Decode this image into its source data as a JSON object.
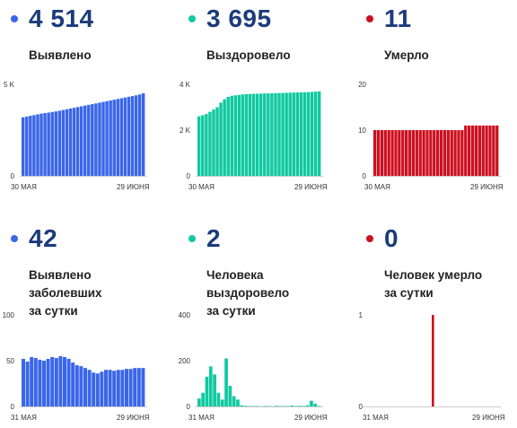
{
  "panels": [
    {
      "value": "4 514",
      "label_lines": [
        "Выявлено"
      ],
      "color": "#3a66e8",
      "dot_color": "#3a66e8"
    },
    {
      "value": "3 695",
      "label_lines": [
        "Выздоровело"
      ],
      "color": "#10c9a0",
      "dot_color": "#10c9a0"
    },
    {
      "value": "11",
      "label_lines": [
        "Умерло"
      ],
      "color": "#cc1020",
      "dot_color": "#cc1020"
    },
    {
      "value": "42",
      "label_lines": [
        "Выявлено заболевших",
        "за сутки"
      ],
      "color": "#3a66e8",
      "dot_color": "#3a66e8"
    },
    {
      "value": "2",
      "label_lines": [
        "Человека выздоровело",
        "за сутки"
      ],
      "color": "#10c9a0",
      "dot_color": "#10c9a0"
    },
    {
      "value": "0",
      "label_lines": [
        "Человек умерло",
        "за сутки"
      ],
      "color": "#cc1020",
      "dot_color": "#cc1020"
    }
  ],
  "chart_data": [
    {
      "type": "bar",
      "series": [
        {
          "values": [
            3200,
            3240,
            3280,
            3320,
            3360,
            3400,
            3430,
            3460,
            3490,
            3520,
            3560,
            3600,
            3640,
            3680,
            3720,
            3760,
            3800,
            3840,
            3880,
            3920,
            3960,
            4000,
            4040,
            4080,
            4120,
            4160,
            4200,
            4240,
            4280,
            4320,
            4360,
            4400,
            4450,
            4514
          ]
        }
      ],
      "ylim": [
        0,
        5000
      ],
      "yticks": [
        {
          "value": 0,
          "label": "0"
        },
        {
          "value": 5000,
          "label": "5 K"
        }
      ],
      "xticks": [
        "30 МАЯ",
        "29 ИЮНЯ"
      ]
    },
    {
      "type": "bar",
      "series": [
        {
          "values": [
            2600,
            2650,
            2700,
            2800,
            2900,
            3000,
            3200,
            3350,
            3450,
            3500,
            3520,
            3540,
            3560,
            3570,
            3580,
            3585,
            3590,
            3595,
            3600,
            3605,
            3610,
            3615,
            3620,
            3625,
            3630,
            3635,
            3640,
            3645,
            3650,
            3655,
            3660,
            3670,
            3680,
            3695
          ]
        }
      ],
      "ylim": [
        0,
        4000
      ],
      "yticks": [
        {
          "value": 0,
          "label": "0"
        },
        {
          "value": 2000,
          "label": "2 K"
        },
        {
          "value": 4000,
          "label": "4 K"
        }
      ],
      "xticks": [
        "30 МАЯ",
        "29 ИЮНЯ"
      ]
    },
    {
      "type": "bar",
      "series": [
        {
          "values": [
            10,
            10,
            10,
            10,
            10,
            10,
            10,
            10,
            10,
            10,
            10,
            10,
            10,
            10,
            10,
            10,
            10,
            10,
            10,
            10,
            10,
            10,
            10,
            10,
            10,
            10,
            11,
            11,
            11,
            11,
            11,
            11,
            11,
            11,
            11,
            11
          ]
        }
      ],
      "ylim": [
        0,
        20
      ],
      "yticks": [
        {
          "value": 0,
          "label": "0"
        },
        {
          "value": 10,
          "label": "10"
        },
        {
          "value": 20,
          "label": "20"
        }
      ],
      "xticks": [
        "30 МАЯ",
        "29 ИЮНЯ"
      ]
    },
    {
      "type": "bar",
      "series": [
        {
          "values": [
            52,
            49,
            54,
            53,
            51,
            50,
            52,
            54,
            53,
            55,
            54,
            52,
            48,
            45,
            44,
            42,
            40,
            37,
            36,
            38,
            40,
            40,
            39,
            40,
            40,
            41,
            41,
            42,
            42,
            42
          ]
        }
      ],
      "ylim": [
        0,
        100
      ],
      "yticks": [
        {
          "value": 0,
          "label": "0"
        },
        {
          "value": 50,
          "label": "50"
        },
        {
          "value": 100,
          "label": "100"
        }
      ],
      "xticks": [
        "31 МАЯ",
        "29 ИЮНЯ"
      ]
    },
    {
      "type": "bar",
      "series": [
        {
          "values": [
            35,
            60,
            130,
            175,
            140,
            60,
            30,
            210,
            90,
            45,
            30,
            5,
            3,
            2,
            2,
            2,
            1,
            2,
            2,
            1,
            3,
            2,
            2,
            2,
            4,
            2,
            3,
            2,
            5,
            25,
            12,
            2
          ]
        }
      ],
      "ylim": [
        0,
        400
      ],
      "yticks": [
        {
          "value": 0,
          "label": "0"
        },
        {
          "value": 200,
          "label": "200"
        },
        {
          "value": 400,
          "label": "400"
        }
      ],
      "xticks": [
        "31 МАЯ",
        "29 ИЮНЯ"
      ]
    },
    {
      "type": "bar",
      "series": [
        {
          "values": [
            0,
            0,
            0,
            0,
            0,
            0,
            0,
            0,
            0,
            0,
            0,
            0,
            0,
            0,
            0,
            0,
            0,
            0,
            0,
            0,
            0,
            0,
            0,
            1,
            0,
            0,
            0,
            0,
            0,
            0,
            0,
            0,
            0,
            0,
            0,
            0,
            0,
            0,
            0,
            0,
            0,
            0,
            0,
            0,
            0,
            0
          ]
        }
      ],
      "ylim": [
        0,
        1
      ],
      "yticks": [
        {
          "value": 0,
          "label": "0"
        },
        {
          "value": 1,
          "label": "1"
        }
      ],
      "xticks": [
        "31 МАЯ",
        "29 ИЮНЯ"
      ]
    }
  ]
}
